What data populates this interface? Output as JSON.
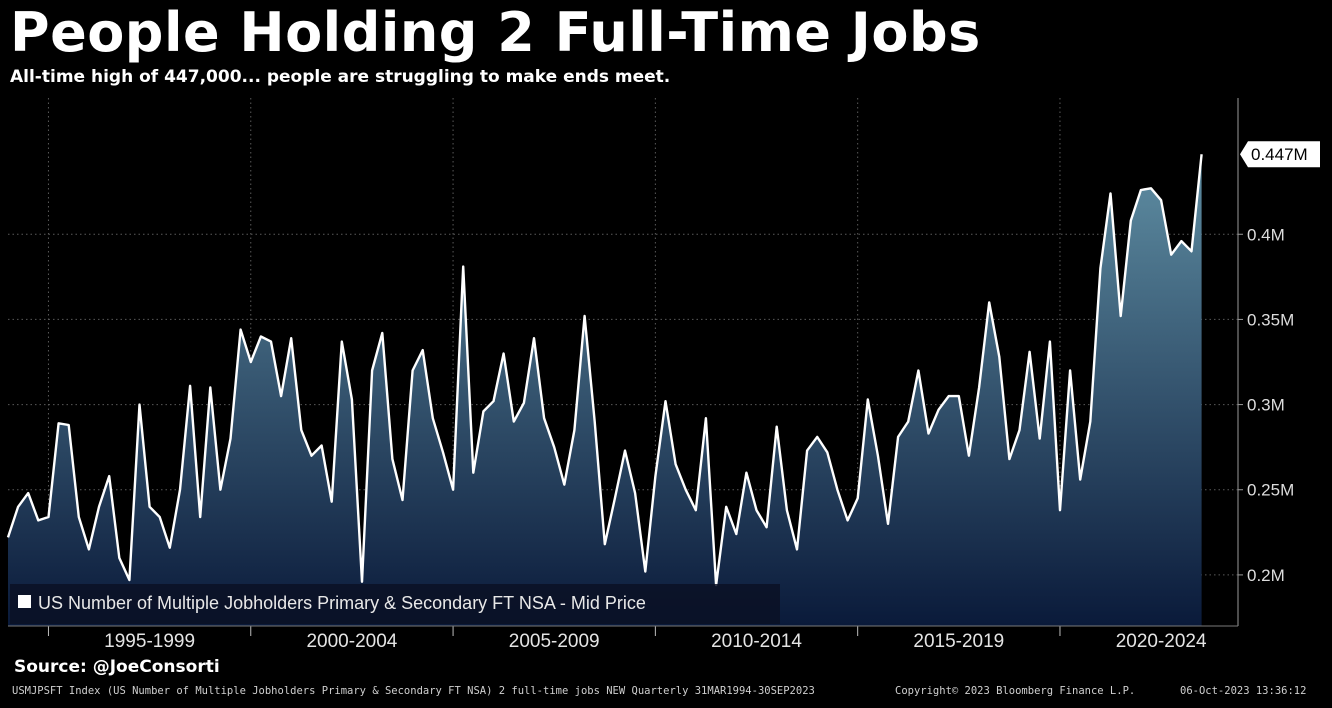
{
  "header": {
    "title": "People Holding 2 Full-Time Jobs",
    "subtitle": "All-time high of 447,000... people are struggling to make ends meet."
  },
  "source": "Source: @JoeConsorti",
  "footer": {
    "left": "USMJPSFT Index (US Number of Multiple Jobholders Primary & Secondary FT NSA) 2 full-time jobs NEW  Quarterly 31MAR1994-30SEP2023",
    "mid": "Copyright© 2023 Bloomberg Finance L.P.",
    "right": "06-Oct-2023 13:36:12"
  },
  "colors": {
    "background": "#000000",
    "line": "#ffffff",
    "fill_top": "#5f8ea3",
    "fill_bottom": "#0a1a3a",
    "grid": "#5a5a5a"
  },
  "chart_data": {
    "type": "area",
    "units": "M",
    "y_ticks": [
      "0.2M",
      "0.25M",
      "0.3M",
      "0.35M",
      "0.4M"
    ],
    "y_tick_values": [
      0.2,
      0.25,
      0.3,
      0.35,
      0.4
    ],
    "ylim": [
      0.17,
      0.48
    ],
    "xlim": [
      1994.0,
      2024.4
    ],
    "grid": true,
    "x_period_labels": [
      {
        "label": "1995-1999",
        "start": 1995,
        "end": 2000
      },
      {
        "label": "2000-2004",
        "start": 2000,
        "end": 2005
      },
      {
        "label": "2005-2009",
        "start": 2005,
        "end": 2010
      },
      {
        "label": "2010-2014",
        "start": 2010,
        "end": 2015
      },
      {
        "label": "2015-2019",
        "start": 2015,
        "end": 2020
      },
      {
        "label": "2020-2024",
        "start": 2020,
        "end": 2025
      }
    ],
    "last_value_label": "0.447M",
    "last_value": 0.447,
    "legend": "US Number of Multiple Jobholders Primary & Secondary FT NSA - Mid Price",
    "legend_position": "bottom-left",
    "series": [
      {
        "name": "US Number of Multiple Jobholders Primary & Secondary FT NSA - Mid Price",
        "x": [
          1994.0,
          1994.25,
          1994.5,
          1994.75,
          1995.0,
          1995.25,
          1995.5,
          1995.75,
          1996.0,
          1996.25,
          1996.5,
          1996.75,
          1997.0,
          1997.25,
          1997.5,
          1997.75,
          1998.0,
          1998.25,
          1998.5,
          1998.75,
          1999.0,
          1999.25,
          1999.5,
          1999.75,
          2000.0,
          2000.25,
          2000.5,
          2000.75,
          2001.0,
          2001.25,
          2001.5,
          2001.75,
          2002.0,
          2002.25,
          2002.5,
          2002.75,
          2003.0,
          2003.25,
          2003.5,
          2003.75,
          2004.0,
          2004.25,
          2004.5,
          2004.75,
          2005.0,
          2005.25,
          2005.5,
          2005.75,
          2006.0,
          2006.25,
          2006.5,
          2006.75,
          2007.0,
          2007.25,
          2007.5,
          2007.75,
          2008.0,
          2008.25,
          2008.5,
          2008.75,
          2009.0,
          2009.25,
          2009.5,
          2009.75,
          2010.0,
          2010.25,
          2010.5,
          2010.75,
          2011.0,
          2011.25,
          2011.5,
          2011.75,
          2012.0,
          2012.25,
          2012.5,
          2012.75,
          2013.0,
          2013.25,
          2013.5,
          2013.75,
          2014.0,
          2014.25,
          2014.5,
          2014.75,
          2015.0,
          2015.25,
          2015.5,
          2015.75,
          2016.0,
          2016.25,
          2016.5,
          2016.75,
          2017.0,
          2017.25,
          2017.5,
          2017.75,
          2018.0,
          2018.25,
          2018.5,
          2018.75,
          2019.0,
          2019.25,
          2019.5,
          2019.75,
          2020.0,
          2020.25,
          2020.5,
          2020.75,
          2021.0,
          2021.25,
          2021.5,
          2021.75,
          2022.0,
          2022.25,
          2022.5,
          2022.75,
          2023.0,
          2023.25,
          2023.5
        ],
        "values": [
          0.222,
          0.24,
          0.248,
          0.232,
          0.234,
          0.289,
          0.288,
          0.234,
          0.215,
          0.24,
          0.258,
          0.21,
          0.197,
          0.3,
          0.24,
          0.234,
          0.216,
          0.25,
          0.311,
          0.234,
          0.31,
          0.25,
          0.28,
          0.344,
          0.325,
          0.34,
          0.337,
          0.305,
          0.339,
          0.285,
          0.27,
          0.276,
          0.243,
          0.337,
          0.303,
          0.196,
          0.32,
          0.342,
          0.268,
          0.244,
          0.32,
          0.332,
          0.292,
          0.272,
          0.25,
          0.381,
          0.26,
          0.296,
          0.302,
          0.33,
          0.29,
          0.301,
          0.339,
          0.292,
          0.275,
          0.253,
          0.285,
          0.352,
          0.29,
          0.218,
          0.245,
          0.273,
          0.248,
          0.202,
          0.258,
          0.302,
          0.265,
          0.25,
          0.238,
          0.292,
          0.194,
          0.24,
          0.224,
          0.26,
          0.238,
          0.228,
          0.287,
          0.238,
          0.215,
          0.273,
          0.281,
          0.272,
          0.25,
          0.232,
          0.245,
          0.303,
          0.27,
          0.23,
          0.281,
          0.29,
          0.32,
          0.283,
          0.297,
          0.305,
          0.305,
          0.27,
          0.31,
          0.36,
          0.328,
          0.268,
          0.285,
          0.331,
          0.28,
          0.337,
          0.238,
          0.32,
          0.256,
          0.29,
          0.38,
          0.424,
          0.352,
          0.408,
          0.426,
          0.427,
          0.42,
          0.388,
          0.396,
          0.39,
          0.447
        ]
      }
    ]
  }
}
